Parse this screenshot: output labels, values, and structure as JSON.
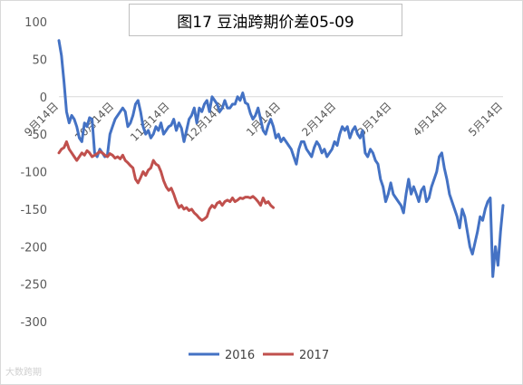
{
  "chart_data": {
    "type": "line",
    "title": "图17 豆油跨期价差05-09",
    "xlabel": "",
    "ylabel": "",
    "ylim": [
      -300,
      100
    ],
    "y_ticks": [
      100,
      50,
      0,
      -50,
      -100,
      -150,
      -200,
      -250,
      -300
    ],
    "x_tick_labels": [
      "9月14日",
      "10月14日",
      "11月14日",
      "12月14日",
      "1月14日",
      "2月14日",
      "3月14日",
      "4月14日",
      "5月14日"
    ],
    "grid": false,
    "legend_position": "bottom",
    "series": [
      {
        "name": "2016",
        "color": "#4472c4",
        "points": [
          [
            0,
            75
          ],
          [
            1,
            55
          ],
          [
            2,
            20
          ],
          [
            3,
            -20
          ],
          [
            4,
            -35
          ],
          [
            5,
            -25
          ],
          [
            6,
            -30
          ],
          [
            7,
            -40
          ],
          [
            8,
            -55
          ],
          [
            9,
            -60
          ],
          [
            10,
            -35
          ],
          [
            11,
            -40
          ],
          [
            12,
            -28
          ],
          [
            13,
            -30
          ],
          [
            14,
            -75
          ],
          [
            15,
            -80
          ],
          [
            16,
            -70
          ],
          [
            17,
            -75
          ],
          [
            18,
            -80
          ],
          [
            19,
            -78
          ],
          [
            20,
            -50
          ],
          [
            21,
            -40
          ],
          [
            22,
            -30
          ],
          [
            23,
            -25
          ],
          [
            24,
            -20
          ],
          [
            25,
            -15
          ],
          [
            26,
            -20
          ],
          [
            27,
            -40
          ],
          [
            28,
            -35
          ],
          [
            29,
            -25
          ],
          [
            30,
            -10
          ],
          [
            31,
            -5
          ],
          [
            32,
            -20
          ],
          [
            33,
            -40
          ],
          [
            34,
            -50
          ],
          [
            35,
            -45
          ],
          [
            36,
            -55
          ],
          [
            37,
            -50
          ],
          [
            38,
            -40
          ],
          [
            39,
            -45
          ],
          [
            40,
            -35
          ],
          [
            41,
            -50
          ],
          [
            42,
            -45
          ],
          [
            43,
            -40
          ],
          [
            44,
            -38
          ],
          [
            45,
            -30
          ],
          [
            46,
            -45
          ],
          [
            47,
            -35
          ],
          [
            48,
            -42
          ],
          [
            49,
            -60
          ],
          [
            50,
            -45
          ],
          [
            51,
            -30
          ],
          [
            52,
            -25
          ],
          [
            53,
            -15
          ],
          [
            54,
            -35
          ],
          [
            55,
            -15
          ],
          [
            56,
            -20
          ],
          [
            57,
            -10
          ],
          [
            58,
            -5
          ],
          [
            59,
            -20
          ],
          [
            60,
            0
          ],
          [
            61,
            -5
          ],
          [
            62,
            -10
          ],
          [
            63,
            -20
          ],
          [
            64,
            -15
          ],
          [
            65,
            -5
          ],
          [
            66,
            -15
          ],
          [
            67,
            -15
          ],
          [
            68,
            -10
          ],
          [
            69,
            -10
          ],
          [
            70,
            0
          ],
          [
            71,
            -5
          ],
          [
            72,
            5
          ],
          [
            73,
            -8
          ],
          [
            74,
            -10
          ],
          [
            75,
            -22
          ],
          [
            76,
            -30
          ],
          [
            77,
            -25
          ],
          [
            78,
            -15
          ],
          [
            79,
            -30
          ],
          [
            80,
            -45
          ],
          [
            81,
            -50
          ],
          [
            82,
            -38
          ],
          [
            83,
            -30
          ],
          [
            84,
            -40
          ],
          [
            85,
            -55
          ],
          [
            86,
            -50
          ],
          [
            87,
            -60
          ],
          [
            88,
            -55
          ],
          [
            89,
            -60
          ],
          [
            90,
            -65
          ],
          [
            91,
            -70
          ],
          [
            92,
            -80
          ],
          [
            93,
            -90
          ],
          [
            94,
            -70
          ],
          [
            95,
            -60
          ],
          [
            96,
            -60
          ],
          [
            97,
            -70
          ],
          [
            98,
            -75
          ],
          [
            99,
            -80
          ],
          [
            100,
            -68
          ],
          [
            101,
            -60
          ],
          [
            102,
            -65
          ],
          [
            103,
            -75
          ],
          [
            104,
            -70
          ],
          [
            105,
            -80
          ],
          [
            106,
            -75
          ],
          [
            107,
            -70
          ],
          [
            108,
            -60
          ],
          [
            109,
            -65
          ],
          [
            110,
            -50
          ],
          [
            111,
            -40
          ],
          [
            112,
            -45
          ],
          [
            113,
            -40
          ],
          [
            114,
            -55
          ],
          [
            115,
            -45
          ],
          [
            116,
            -40
          ],
          [
            117,
            -50
          ],
          [
            118,
            -55
          ],
          [
            119,
            -45
          ],
          [
            120,
            -75
          ],
          [
            121,
            -80
          ],
          [
            122,
            -70
          ],
          [
            123,
            -75
          ],
          [
            124,
            -85
          ],
          [
            125,
            -90
          ],
          [
            126,
            -110
          ],
          [
            127,
            -120
          ],
          [
            128,
            -140
          ],
          [
            129,
            -130
          ],
          [
            130,
            -115
          ],
          [
            131,
            -130
          ],
          [
            132,
            -135
          ],
          [
            133,
            -140
          ],
          [
            134,
            -145
          ],
          [
            135,
            -155
          ],
          [
            136,
            -130
          ],
          [
            137,
            -110
          ],
          [
            138,
            -130
          ],
          [
            139,
            -120
          ],
          [
            140,
            -130
          ],
          [
            141,
            -140
          ],
          [
            142,
            -125
          ],
          [
            143,
            -120
          ],
          [
            144,
            -140
          ],
          [
            145,
            -135
          ],
          [
            146,
            -120
          ],
          [
            147,
            -110
          ],
          [
            148,
            -100
          ],
          [
            149,
            -80
          ],
          [
            150,
            -75
          ],
          [
            151,
            -95
          ],
          [
            152,
            -110
          ],
          [
            153,
            -130
          ],
          [
            154,
            -140
          ],
          [
            155,
            -150
          ],
          [
            156,
            -160
          ],
          [
            157,
            -175
          ],
          [
            158,
            -150
          ],
          [
            159,
            -160
          ],
          [
            160,
            -180
          ],
          [
            161,
            -200
          ],
          [
            162,
            -210
          ],
          [
            163,
            -195
          ],
          [
            164,
            -180
          ],
          [
            165,
            -160
          ],
          [
            166,
            -165
          ],
          [
            167,
            -150
          ],
          [
            168,
            -140
          ],
          [
            169,
            -135
          ],
          [
            170,
            -240
          ],
          [
            171,
            -200
          ],
          [
            172,
            -225
          ],
          [
            173,
            -180
          ],
          [
            174,
            -145
          ]
        ]
      },
      {
        "name": "2017",
        "color": "#c0504d",
        "points": [
          [
            0,
            -75
          ],
          [
            1,
            -70
          ],
          [
            2,
            -68
          ],
          [
            3,
            -60
          ],
          [
            4,
            -70
          ],
          [
            5,
            -75
          ],
          [
            6,
            -80
          ],
          [
            7,
            -85
          ],
          [
            8,
            -80
          ],
          [
            9,
            -75
          ],
          [
            10,
            -78
          ],
          [
            11,
            -72
          ],
          [
            12,
            -75
          ],
          [
            13,
            -80
          ],
          [
            14,
            -78
          ],
          [
            15,
            -76
          ],
          [
            16,
            -73
          ],
          [
            17,
            -75
          ],
          [
            18,
            -78
          ],
          [
            19,
            -80
          ],
          [
            20,
            -76
          ],
          [
            21,
            -78
          ],
          [
            22,
            -82
          ],
          [
            23,
            -80
          ],
          [
            24,
            -83
          ],
          [
            25,
            -78
          ],
          [
            26,
            -85
          ],
          [
            27,
            -88
          ],
          [
            28,
            -92
          ],
          [
            29,
            -95
          ],
          [
            30,
            -110
          ],
          [
            31,
            -115
          ],
          [
            32,
            -108
          ],
          [
            33,
            -100
          ],
          [
            34,
            -105
          ],
          [
            35,
            -98
          ],
          [
            36,
            -95
          ],
          [
            37,
            -85
          ],
          [
            38,
            -90
          ],
          [
            39,
            -92
          ],
          [
            40,
            -100
          ],
          [
            41,
            -112
          ],
          [
            42,
            -120
          ],
          [
            43,
            -125
          ],
          [
            44,
            -122
          ],
          [
            45,
            -130
          ],
          [
            46,
            -140
          ],
          [
            47,
            -148
          ],
          [
            48,
            -145
          ],
          [
            49,
            -150
          ],
          [
            50,
            -148
          ],
          [
            51,
            -152
          ],
          [
            52,
            -150
          ],
          [
            53,
            -155
          ],
          [
            54,
            -158
          ],
          [
            55,
            -162
          ],
          [
            56,
            -165
          ],
          [
            57,
            -163
          ],
          [
            58,
            -160
          ],
          [
            59,
            -150
          ],
          [
            60,
            -145
          ],
          [
            61,
            -148
          ],
          [
            62,
            -142
          ],
          [
            63,
            -140
          ],
          [
            64,
            -145
          ],
          [
            65,
            -140
          ],
          [
            66,
            -138
          ],
          [
            67,
            -140
          ],
          [
            68,
            -135
          ],
          [
            69,
            -140
          ],
          [
            70,
            -138
          ],
          [
            71,
            -135
          ],
          [
            72,
            -136
          ],
          [
            73,
            -134
          ],
          [
            74,
            -134
          ],
          [
            75,
            -135
          ],
          [
            76,
            -133
          ],
          [
            77,
            -136
          ],
          [
            78,
            -140
          ],
          [
            79,
            -145
          ],
          [
            80,
            -135
          ],
          [
            81,
            -142
          ],
          [
            82,
            -140
          ],
          [
            83,
            -145
          ],
          [
            84,
            -148
          ]
        ]
      }
    ]
  },
  "watermark": "大数跨期"
}
